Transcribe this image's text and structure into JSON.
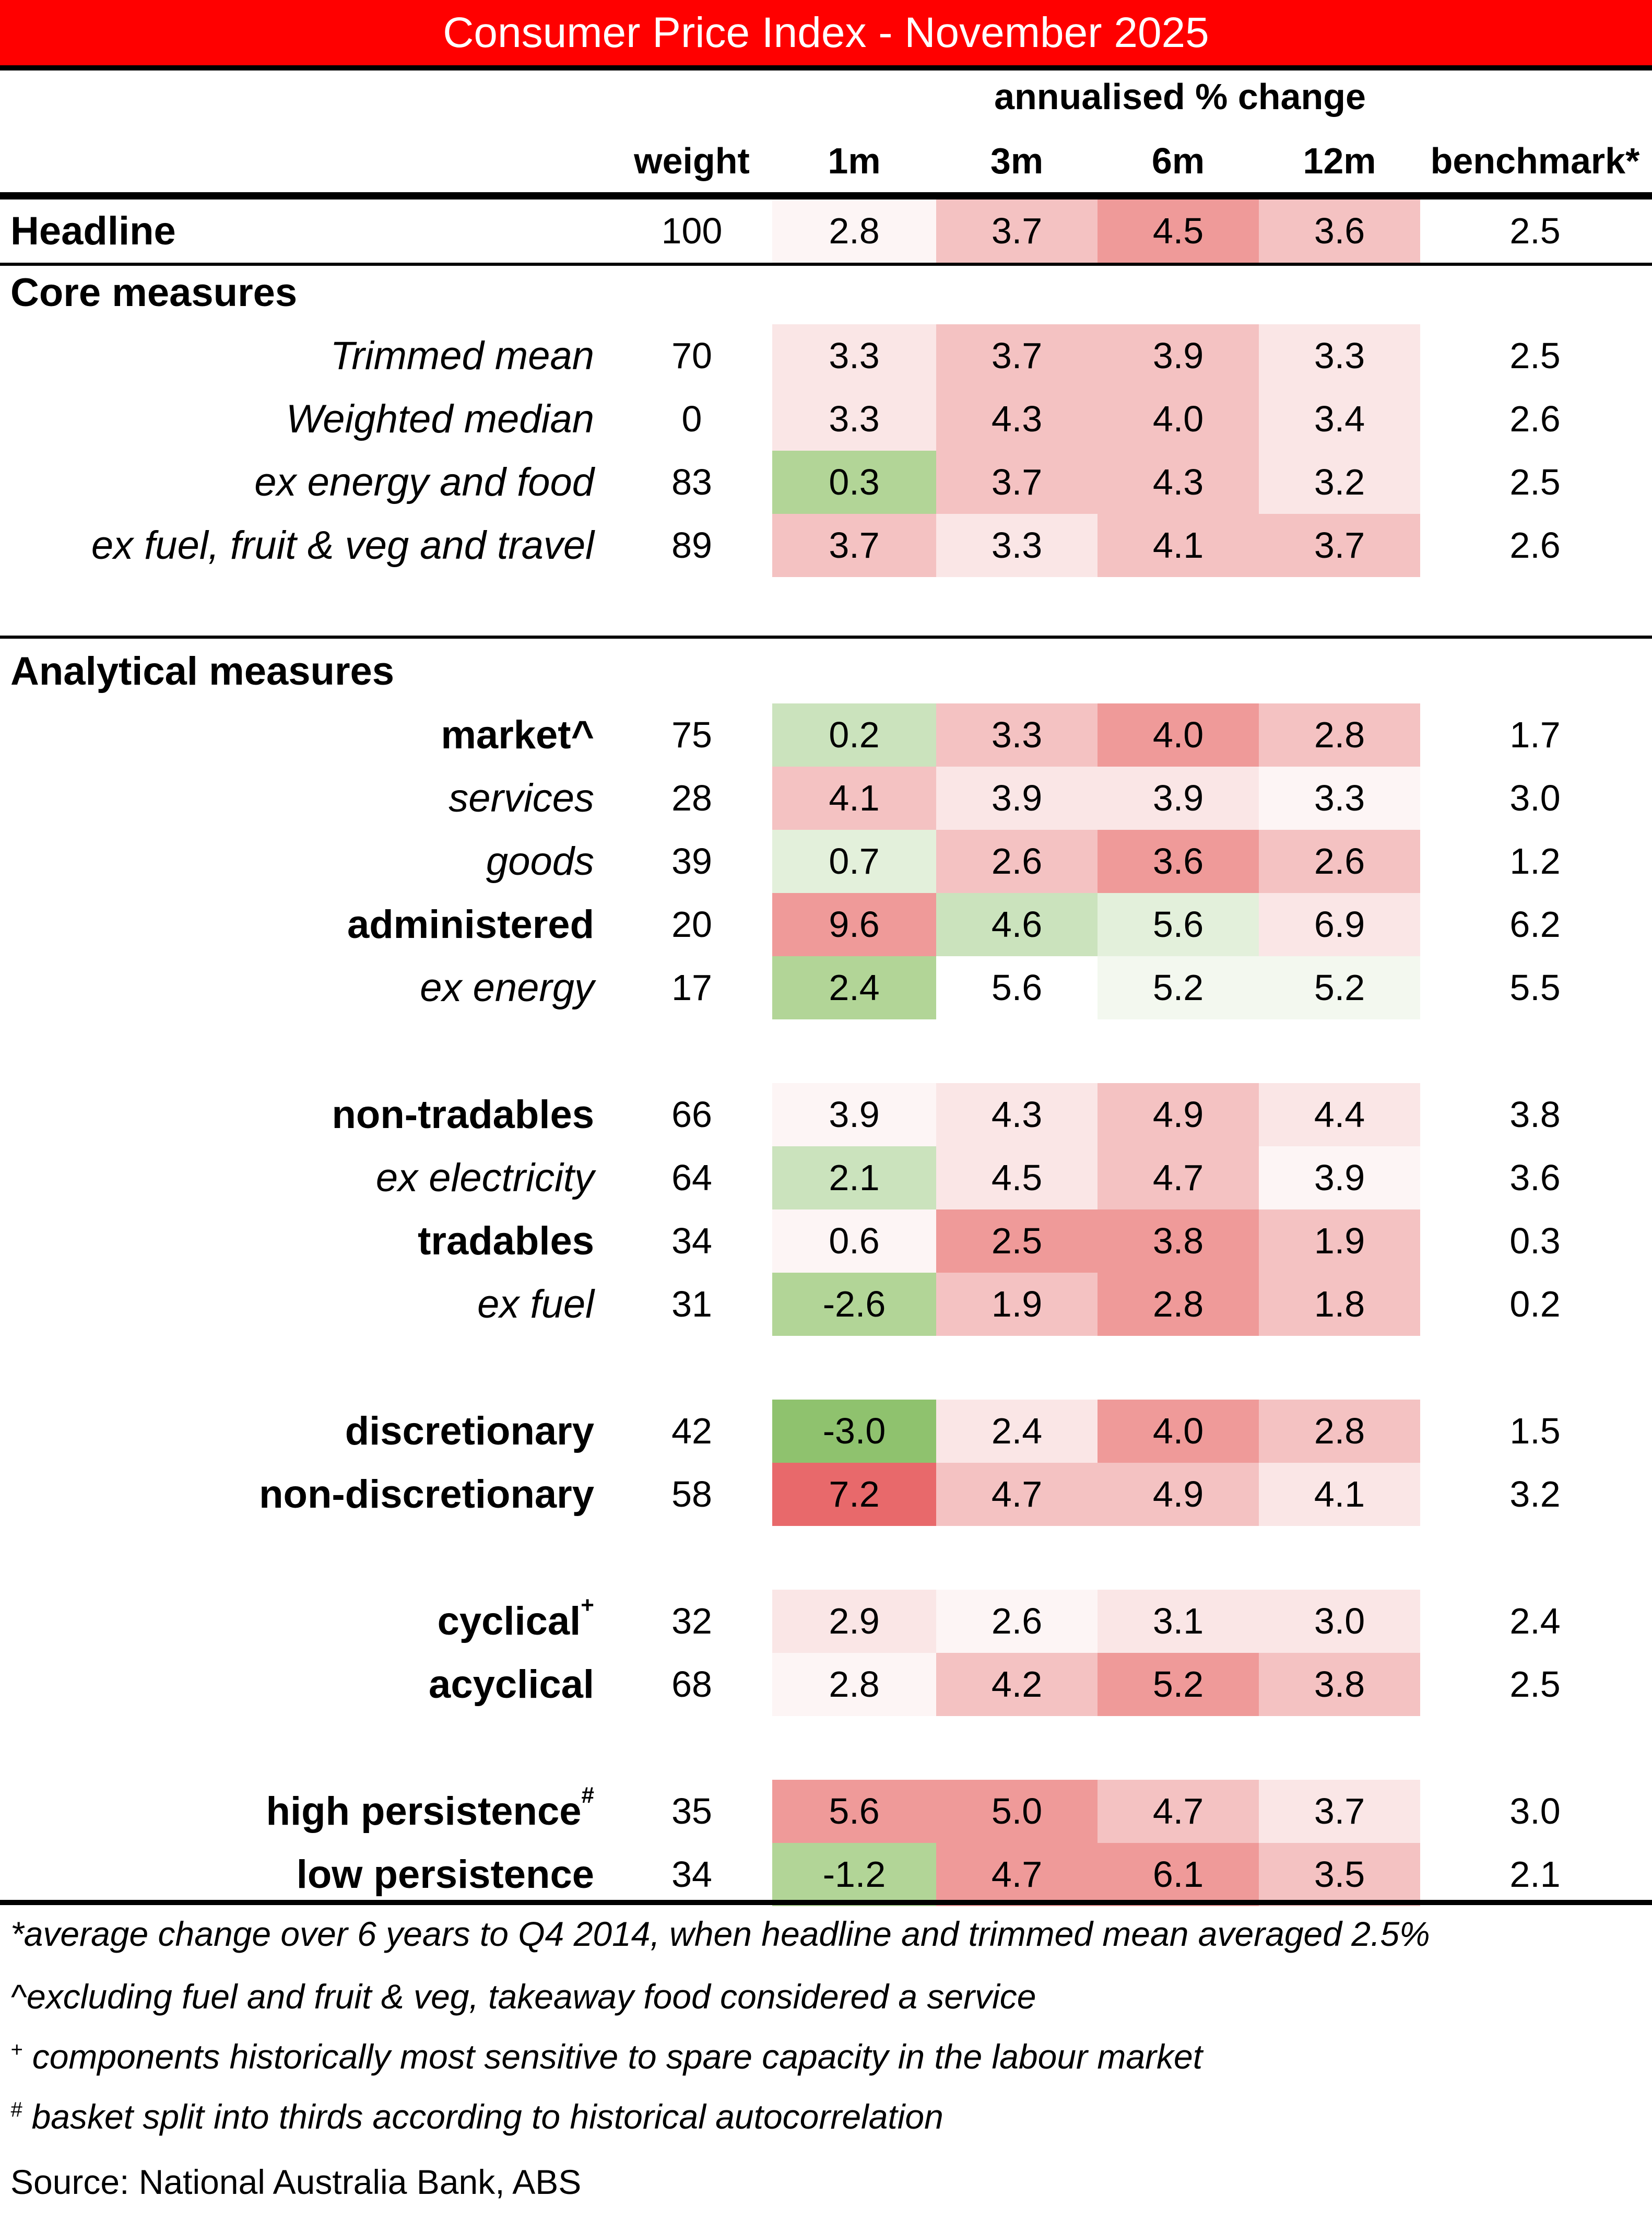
{
  "title": "Consumer Price Index - November 2025",
  "header": {
    "group_label": "annualised % change",
    "columns": [
      "weight",
      "1m",
      "3m",
      "6m",
      "12m",
      "benchmark*"
    ]
  },
  "colors": {
    "title_bg": "#ff0000",
    "title_text": "#ffffff",
    "red_strong": "#e8696b",
    "red_mid": "#ef9a99",
    "red_light": "#f4c2c2",
    "red_faint": "#fae6e6",
    "red_veryfaint": "#fdf5f5",
    "green_strong": "#8fc26e",
    "green_mid": "#b2d597",
    "green_light": "#cbe3bd",
    "green_faint": "#e3f0db",
    "green_veryfaint": "#f3f8ef",
    "white": "#ffffff"
  },
  "chart_data": {
    "type": "table",
    "title": "Consumer Price Index - November 2025",
    "column_group": "annualised % change",
    "columns": [
      "weight",
      "1m",
      "3m",
      "6m",
      "12m",
      "benchmark*"
    ],
    "sections": [
      {
        "name": "",
        "rows": [
          {
            "label": "Headline",
            "style": "bold",
            "weight": "100",
            "values": [
              "2.8",
              "3.7",
              "4.5",
              "3.6"
            ],
            "shades": [
              "red_veryfaint",
              "red_light",
              "red_mid",
              "red_light"
            ],
            "benchmark": "2.5"
          }
        ]
      },
      {
        "name": "Core measures",
        "rows": [
          {
            "label": "Trimmed mean",
            "style": "ital",
            "weight": "70",
            "values": [
              "3.3",
              "3.7",
              "3.9",
              "3.3"
            ],
            "shades": [
              "red_faint",
              "red_light",
              "red_light",
              "red_faint"
            ],
            "benchmark": "2.5"
          },
          {
            "label": "Weighted median",
            "style": "ital",
            "weight": "0",
            "values": [
              "3.3",
              "4.3",
              "4.0",
              "3.4"
            ],
            "shades": [
              "red_faint",
              "red_light",
              "red_light",
              "red_faint"
            ],
            "benchmark": "2.6"
          },
          {
            "label": "ex energy and food",
            "style": "ital",
            "weight": "83",
            "values": [
              "0.3",
              "3.7",
              "4.3",
              "3.2"
            ],
            "shades": [
              "green_mid",
              "red_light",
              "red_light",
              "red_faint"
            ],
            "benchmark": "2.5"
          },
          {
            "label": "ex fuel, fruit & veg and travel",
            "style": "ital",
            "weight": "89",
            "values": [
              "3.7",
              "3.3",
              "4.1",
              "3.7"
            ],
            "shades": [
              "red_light",
              "red_faint",
              "red_light",
              "red_light"
            ],
            "benchmark": "2.6"
          }
        ]
      },
      {
        "name": "Analytical measures",
        "rows": [
          {
            "label": "market^",
            "style": "bold",
            "weight": "75",
            "values": [
              "0.2",
              "3.3",
              "4.0",
              "2.8"
            ],
            "shades": [
              "green_light",
              "red_light",
              "red_mid",
              "red_light"
            ],
            "benchmark": "1.7"
          },
          {
            "label": "services",
            "style": "ital",
            "weight": "28",
            "values": [
              "4.1",
              "3.9",
              "3.9",
              "3.3"
            ],
            "shades": [
              "red_light",
              "red_faint",
              "red_faint",
              "red_veryfaint"
            ],
            "benchmark": "3.0"
          },
          {
            "label": "goods",
            "style": "ital",
            "weight": "39",
            "values": [
              "0.7",
              "2.6",
              "3.6",
              "2.6"
            ],
            "shades": [
              "green_faint",
              "red_light",
              "red_mid",
              "red_light"
            ],
            "benchmark": "1.2"
          },
          {
            "label": "administered",
            "style": "bold",
            "weight": "20",
            "values": [
              "9.6",
              "4.6",
              "5.6",
              "6.9"
            ],
            "shades": [
              "red_mid",
              "green_light",
              "green_faint",
              "red_faint"
            ],
            "benchmark": "6.2"
          },
          {
            "label": "ex energy",
            "style": "ital",
            "weight": "17",
            "values": [
              "2.4",
              "5.6",
              "5.2",
              "5.2"
            ],
            "shades": [
              "green_mid",
              "white",
              "green_veryfaint",
              "green_veryfaint"
            ],
            "benchmark": "5.5"
          },
          {
            "label": "non-tradables",
            "style": "bold",
            "weight": "66",
            "values": [
              "3.9",
              "4.3",
              "4.9",
              "4.4"
            ],
            "shades": [
              "red_veryfaint",
              "red_faint",
              "red_light",
              "red_faint"
            ],
            "benchmark": "3.8"
          },
          {
            "label": "ex electricity",
            "style": "ital",
            "weight": "64",
            "values": [
              "2.1",
              "4.5",
              "4.7",
              "3.9"
            ],
            "shades": [
              "green_light",
              "red_faint",
              "red_light",
              "red_veryfaint"
            ],
            "benchmark": "3.6"
          },
          {
            "label": "tradables",
            "style": "bold",
            "weight": "34",
            "values": [
              "0.6",
              "2.5",
              "3.8",
              "1.9"
            ],
            "shades": [
              "red_veryfaint",
              "red_mid",
              "red_mid",
              "red_light"
            ],
            "benchmark": "0.3"
          },
          {
            "label": "ex fuel",
            "style": "ital",
            "weight": "31",
            "values": [
              "-2.6",
              "1.9",
              "2.8",
              "1.8"
            ],
            "shades": [
              "green_mid",
              "red_light",
              "red_mid",
              "red_light"
            ],
            "benchmark": "0.2"
          },
          {
            "label": "discretionary",
            "style": "bold",
            "weight": "42",
            "values": [
              "-3.0",
              "2.4",
              "4.0",
              "2.8"
            ],
            "shades": [
              "green_strong",
              "red_faint",
              "red_mid",
              "red_light"
            ],
            "benchmark": "1.5"
          },
          {
            "label": "non-discretionary",
            "style": "bold",
            "weight": "58",
            "values": [
              "7.2",
              "4.7",
              "4.9",
              "4.1"
            ],
            "shades": [
              "red_strong",
              "red_light",
              "red_light",
              "red_faint"
            ],
            "benchmark": "3.2"
          },
          {
            "label": "cyclical",
            "sup": "+",
            "style": "bold",
            "weight": "32",
            "values": [
              "2.9",
              "2.6",
              "3.1",
              "3.0"
            ],
            "shades": [
              "red_faint",
              "red_veryfaint",
              "red_faint",
              "red_faint"
            ],
            "benchmark": "2.4"
          },
          {
            "label": "acyclical",
            "style": "bold",
            "weight": "68",
            "values": [
              "2.8",
              "4.2",
              "5.2",
              "3.8"
            ],
            "shades": [
              "red_veryfaint",
              "red_light",
              "red_mid",
              "red_light"
            ],
            "benchmark": "2.5"
          },
          {
            "label": "high persistence",
            "sup": "#",
            "style": "bold",
            "weight": "35",
            "values": [
              "5.6",
              "5.0",
              "4.7",
              "3.7"
            ],
            "shades": [
              "red_mid",
              "red_mid",
              "red_light",
              "red_faint"
            ],
            "benchmark": "3.0"
          },
          {
            "label": "low persistence",
            "style": "bold",
            "weight": "34",
            "values": [
              "-1.2",
              "4.7",
              "6.1",
              "3.5"
            ],
            "shades": [
              "green_mid",
              "red_mid",
              "red_mid",
              "red_light"
            ],
            "benchmark": "2.1"
          }
        ]
      }
    ]
  },
  "footnotes": [
    {
      "mark": "*",
      "text": "average change over 6 years to Q4 2014, when headline and trimmed mean averaged 2.5%"
    },
    {
      "mark": "^",
      "text": "excluding fuel and fruit & veg, takeaway food considered a service"
    },
    {
      "mark": "+",
      "text": " components historically most sensitive to spare capacity in the labour market"
    },
    {
      "mark": "#",
      "text": " basket split into thirds according to historical  autocorrelation"
    }
  ],
  "source": "Source: National Australia Bank, ABS"
}
